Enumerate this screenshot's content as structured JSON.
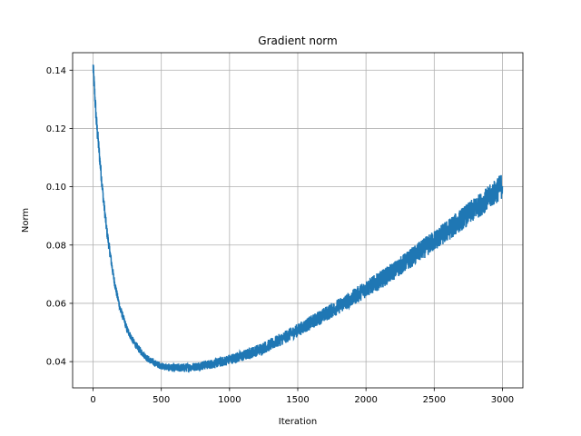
{
  "chart_data": {
    "type": "line",
    "title": "Gradient norm",
    "xlabel": "Iteration",
    "ylabel": "Norm",
    "xlim": [
      -150,
      3150
    ],
    "ylim": [
      0.031,
      0.146
    ],
    "xticks": [
      0,
      500,
      1000,
      1500,
      2000,
      2500,
      3000
    ],
    "yticks": [
      0.04,
      0.06,
      0.08,
      0.1,
      0.12,
      0.14
    ],
    "xtick_labels": [
      "0",
      "500",
      "1000",
      "1500",
      "2000",
      "2500",
      "3000"
    ],
    "ytick_labels": [
      "0.04",
      "0.06",
      "0.08",
      "0.10",
      "0.12",
      "0.14"
    ],
    "grid": true,
    "series": [
      {
        "color": "#1f77b4",
        "x": [
          0,
          25,
          50,
          75,
          100,
          125,
          150,
          175,
          200,
          250,
          300,
          350,
          400,
          450,
          500,
          550,
          600,
          650,
          700,
          750,
          800,
          850,
          900,
          950,
          1000,
          1100,
          1200,
          1300,
          1400,
          1500,
          1600,
          1700,
          1800,
          1900,
          2000,
          2100,
          2200,
          2300,
          2400,
          2500,
          2600,
          2700,
          2800,
          2900,
          3000
        ],
        "y": [
          0.141,
          0.122,
          0.109,
          0.096,
          0.085,
          0.077,
          0.069,
          0.063,
          0.058,
          0.051,
          0.0465,
          0.0435,
          0.041,
          0.0395,
          0.0385,
          0.038,
          0.0378,
          0.0379,
          0.038,
          0.0383,
          0.0387,
          0.039,
          0.0395,
          0.04,
          0.0408,
          0.042,
          0.0438,
          0.0458,
          0.0482,
          0.0508,
          0.0535,
          0.0562,
          0.059,
          0.0618,
          0.065,
          0.0678,
          0.071,
          0.0745,
          0.078,
          0.0815,
          0.085,
          0.0888,
          0.0925,
          0.0962,
          0.1005
        ],
        "noise_amplitude": [
          0.003,
          0.003,
          0.0025,
          0.002,
          0.002,
          0.0018,
          0.0015,
          0.0014,
          0.0013,
          0.0012,
          0.0012,
          0.0012,
          0.0012,
          0.0012,
          0.0012,
          0.0013,
          0.0014,
          0.0015,
          0.0015,
          0.0015,
          0.0016,
          0.0016,
          0.0017,
          0.0017,
          0.0018,
          0.0019,
          0.002,
          0.0021,
          0.0022,
          0.0023,
          0.0024,
          0.0026,
          0.0027,
          0.0028,
          0.003,
          0.0031,
          0.0032,
          0.0033,
          0.0035,
          0.0036,
          0.0038,
          0.0039,
          0.004,
          0.0042,
          0.0045
        ]
      }
    ]
  }
}
